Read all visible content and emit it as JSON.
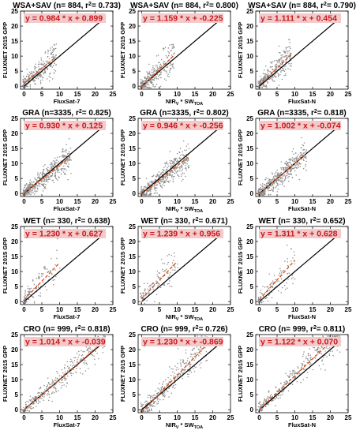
{
  "figure": {
    "y_label": "FLUXNET 2015 GPP",
    "columns": [
      {
        "x_label": "FluxSat-7",
        "x_label_sub": "",
        "x_label_tail": ""
      },
      {
        "x_label": "NIR",
        "x_label_sub": "V",
        "x_label_tail": " * SW",
        "x_label_sub2": "TOA"
      },
      {
        "x_label": "FluxSat-N",
        "x_label_sub": "",
        "x_label_tail": ""
      }
    ]
  },
  "chart_data": [
    {
      "type": "scatter",
      "row": 0,
      "col": 0,
      "title": "WSA+SAV (n= 884, r",
      "title_sup": "2",
      "title_tail": "= 0.733)",
      "equation": "y = 0.984 * x + 0.899",
      "slope": 0.984,
      "intercept": 0.899,
      "n": 884,
      "r2": 0.733,
      "xlim": [
        -1,
        25
      ],
      "ylim": [
        -1,
        25
      ],
      "xticks": [
        0,
        5,
        10,
        15,
        20,
        25
      ],
      "yticks": [
        0,
        5,
        10,
        15,
        20,
        25
      ],
      "fit_x_max": 9
    },
    {
      "type": "scatter",
      "row": 0,
      "col": 1,
      "title": "WSA+SAV (n= 884, r",
      "title_sup": "2",
      "title_tail": "= 0.800)",
      "equation": "y = 1.159 * x + -0.225",
      "slope": 1.159,
      "intercept": -0.225,
      "n": 884,
      "r2": 0.8,
      "xlim": [
        -1,
        25
      ],
      "ylim": [
        -1,
        25
      ],
      "xticks": [
        0,
        5,
        10,
        15,
        20,
        25
      ],
      "yticks": [
        0,
        5,
        10,
        15,
        20,
        25
      ],
      "fit_x_max": 9
    },
    {
      "type": "scatter",
      "row": 0,
      "col": 2,
      "title": "WSA+SAV (n= 884, r",
      "title_sup": "2",
      "title_tail": "= 0.790)",
      "equation": "y = 1.111 * x + 0.454",
      "slope": 1.111,
      "intercept": 0.454,
      "n": 884,
      "r2": 0.79,
      "xlim": [
        -1,
        25
      ],
      "ylim": [
        -1,
        25
      ],
      "xticks": [
        0,
        5,
        10,
        15,
        20,
        25
      ],
      "yticks": [
        0,
        5,
        10,
        15,
        20,
        25
      ],
      "fit_x_max": 9
    },
    {
      "type": "scatter",
      "row": 1,
      "col": 0,
      "title": "GRA (n=3335, r",
      "title_sup": "2",
      "title_tail": "= 0.825)",
      "equation": "y = 0.930 * x + 0.125",
      "slope": 0.93,
      "intercept": 0.125,
      "n": 3335,
      "r2": 0.825,
      "xlim": [
        -1,
        25
      ],
      "ylim": [
        -1,
        25
      ],
      "xticks": [
        0,
        5,
        10,
        15,
        20,
        25
      ],
      "yticks": [
        0,
        5,
        10,
        15,
        20,
        25
      ],
      "fit_x_max": 13
    },
    {
      "type": "scatter",
      "row": 1,
      "col": 1,
      "title": "GRA (n=3335, r",
      "title_sup": "2",
      "title_tail": "= 0.802)",
      "equation": "y = 0.946 * x + -0.256",
      "slope": 0.946,
      "intercept": -0.256,
      "n": 3335,
      "r2": 0.802,
      "xlim": [
        -1,
        25
      ],
      "ylim": [
        -1,
        25
      ],
      "xticks": [
        0,
        5,
        10,
        15,
        20,
        25
      ],
      "yticks": [
        0,
        5,
        10,
        15,
        20,
        25
      ],
      "fit_x_max": 13
    },
    {
      "type": "scatter",
      "row": 1,
      "col": 2,
      "title": "GRA (n=3335, r",
      "title_sup": "2",
      "title_tail": "= 0.818)",
      "equation": "y = 1.002 * x + -0.074",
      "slope": 1.002,
      "intercept": -0.074,
      "n": 3335,
      "r2": 0.818,
      "xlim": [
        -1,
        25
      ],
      "ylim": [
        -1,
        25
      ],
      "xticks": [
        0,
        5,
        10,
        15,
        20,
        25
      ],
      "yticks": [
        0,
        5,
        10,
        15,
        20,
        25
      ],
      "fit_x_max": 13
    },
    {
      "type": "scatter",
      "row": 2,
      "col": 0,
      "title": "WET (n= 330, r",
      "title_sup": "2",
      "title_tail": "= 0.638)",
      "equation": "y = 1.230 * x + 0.627",
      "slope": 1.23,
      "intercept": 0.627,
      "n": 330,
      "r2": 0.638,
      "xlim": [
        -1,
        25
      ],
      "ylim": [
        -1,
        25
      ],
      "xticks": [
        0,
        5,
        10,
        15,
        20,
        25
      ],
      "yticks": [
        0,
        5,
        10,
        15,
        20,
        25
      ],
      "fit_x_max": 10
    },
    {
      "type": "scatter",
      "row": 2,
      "col": 1,
      "title": "WET (n= 330, r",
      "title_sup": "2",
      "title_tail": "= 0.671)",
      "equation": "y = 1.239 * x + 0.956",
      "slope": 1.239,
      "intercept": 0.956,
      "n": 330,
      "r2": 0.671,
      "xlim": [
        -1,
        25
      ],
      "ylim": [
        -1,
        25
      ],
      "xticks": [
        0,
        5,
        10,
        15,
        20,
        25
      ],
      "yticks": [
        0,
        5,
        10,
        15,
        20,
        25
      ],
      "fit_x_max": 10
    },
    {
      "type": "scatter",
      "row": 2,
      "col": 2,
      "title": "WET (n= 330, r",
      "title_sup": "2",
      "title_tail": "= 0.652)",
      "equation": "y = 1.311 * x + 0.628",
      "slope": 1.311,
      "intercept": 0.628,
      "n": 330,
      "r2": 0.652,
      "xlim": [
        -1,
        25
      ],
      "ylim": [
        -1,
        25
      ],
      "xticks": [
        0,
        5,
        10,
        15,
        20,
        25
      ],
      "yticks": [
        0,
        5,
        10,
        15,
        20,
        25
      ],
      "fit_x_max": 10
    },
    {
      "type": "scatter",
      "row": 3,
      "col": 0,
      "title": "CRO (n= 999, r",
      "title_sup": "2",
      "title_tail": "= 0.818)",
      "equation": "y = 1.014 * x + -0.039",
      "slope": 1.014,
      "intercept": -0.039,
      "n": 999,
      "r2": 0.818,
      "xlim": [
        -1,
        25
      ],
      "ylim": [
        -1,
        25
      ],
      "xticks": [
        0,
        5,
        10,
        15,
        20,
        25
      ],
      "yticks": [
        0,
        5,
        10,
        15,
        20,
        25
      ],
      "fit_x_max": 22
    },
    {
      "type": "scatter",
      "row": 3,
      "col": 1,
      "title": "CRO (n= 999, r",
      "title_sup": "2",
      "title_tail": "= 0.726)",
      "equation": "y = 1.230 * x + -0.869",
      "slope": 1.23,
      "intercept": -0.869,
      "n": 999,
      "r2": 0.726,
      "xlim": [
        -1,
        25
      ],
      "ylim": [
        -1,
        25
      ],
      "xticks": [
        0,
        5,
        10,
        15,
        20,
        25
      ],
      "yticks": [
        0,
        5,
        10,
        15,
        20,
        25
      ],
      "fit_x_max": 18
    },
    {
      "type": "scatter",
      "row": 3,
      "col": 2,
      "title": "CRO (n= 999, r",
      "title_sup": "2",
      "title_tail": "= 0.811)",
      "equation": "y = 1.122 * x + 0.070",
      "slope": 1.122,
      "intercept": 0.07,
      "n": 999,
      "r2": 0.811,
      "xlim": [
        -1,
        25
      ],
      "ylim": [
        -1,
        25
      ],
      "xticks": [
        0,
        5,
        10,
        15,
        20,
        25
      ],
      "yticks": [
        0,
        5,
        10,
        15,
        20,
        25
      ],
      "fit_x_max": 22
    }
  ]
}
